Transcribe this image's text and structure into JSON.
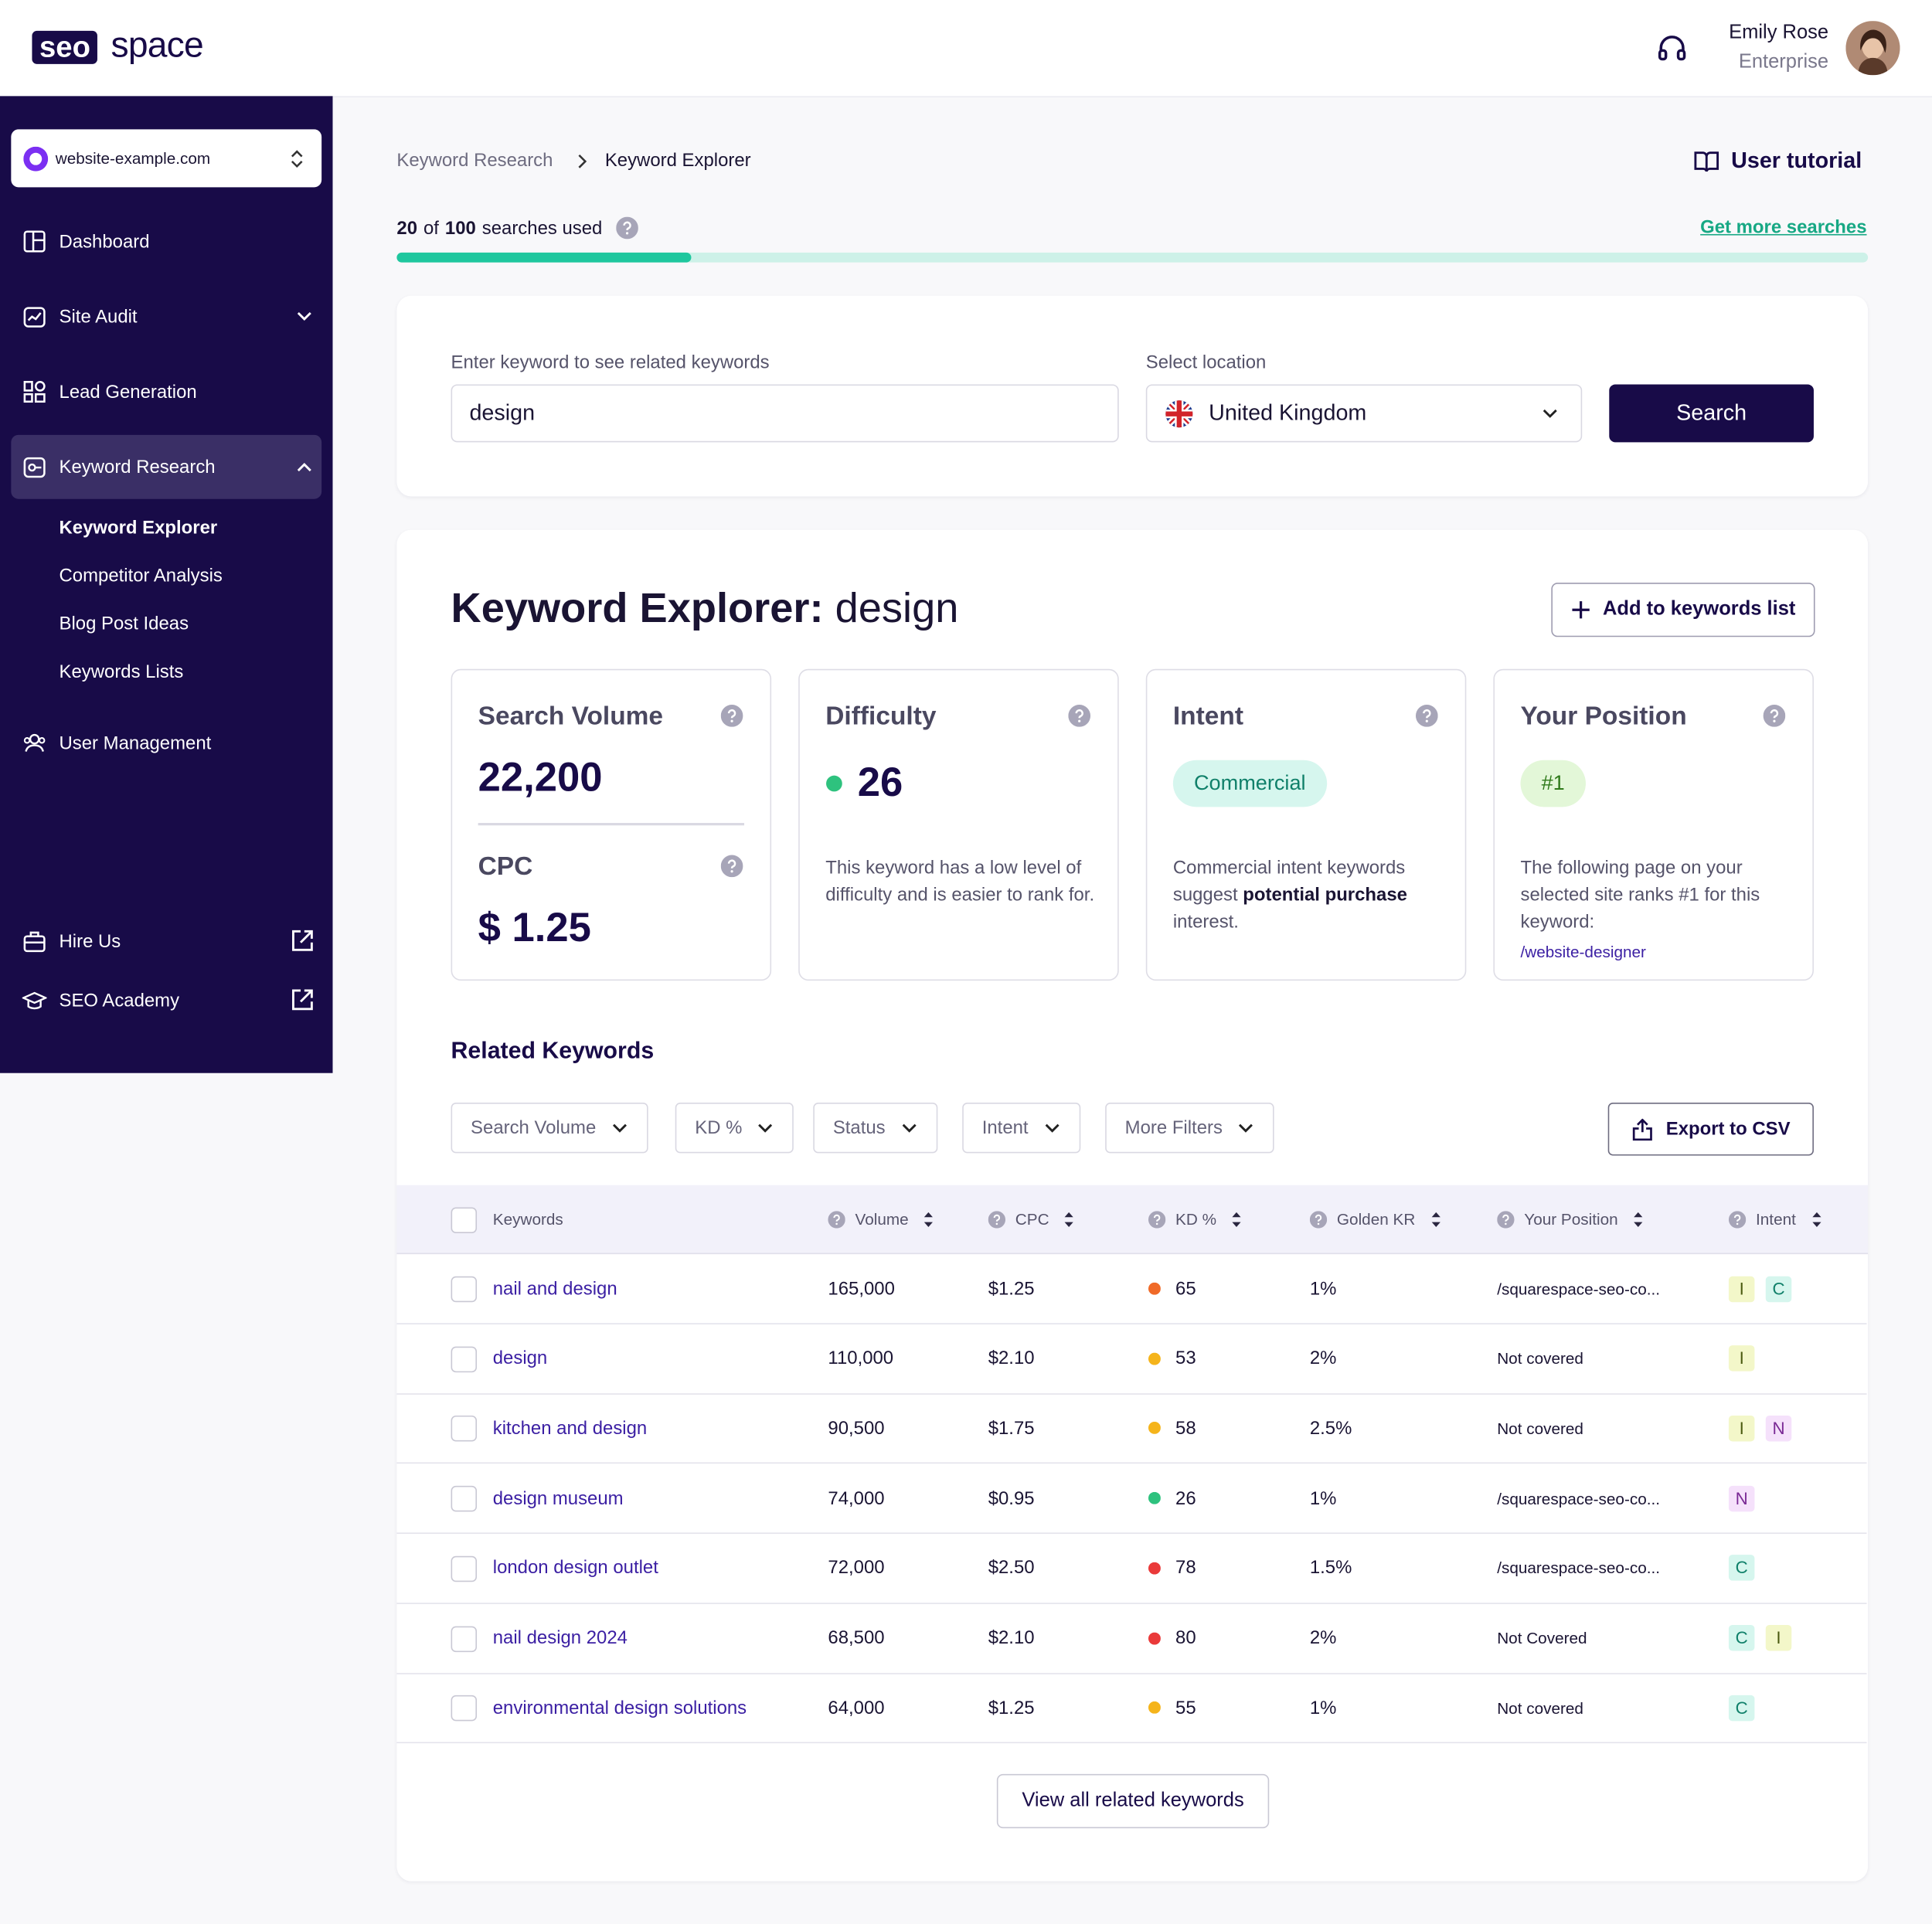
{
  "header": {
    "logo_box": "seo",
    "logo_text": "space",
    "user_name": "Emily Rose",
    "user_plan": "Enterprise"
  },
  "sidebar": {
    "site": "website-example.com",
    "nav": [
      "Dashboard",
      "Site Audit",
      "Lead Generation",
      "Keyword Research"
    ],
    "subnav": [
      "Keyword Explorer",
      "Competitor Analysis",
      "Blog Post Ideas",
      "Keywords Lists"
    ],
    "user_management": "User Management",
    "bottom": [
      "Hire Us",
      "SEO Academy"
    ]
  },
  "breadcrumb": [
    "Keyword Research",
    "Keyword Explorer"
  ],
  "tutorial": "User tutorial",
  "usage": {
    "used": 20,
    "of": "of",
    "total": 100,
    "suffix": "searches used",
    "link": "Get more searches"
  },
  "search": {
    "keyword_label": "Enter keyword to see related keywords",
    "keyword": "design",
    "location_label": "Select location",
    "location": "United Kingdom",
    "button": "Search"
  },
  "explorer": {
    "title": "Keyword Explorer:",
    "keyword": "design",
    "add_button": "Add to keywords list",
    "volume": {
      "label": "Search Volume",
      "value": "22,200"
    },
    "cpc": {
      "label": "CPC",
      "value": "$ 1.25"
    },
    "difficulty": {
      "label": "Difficulty",
      "value": "26",
      "text": "This keyword has a low level of difficulty and is easier to rank for."
    },
    "intent": {
      "label": "Intent",
      "value": "Commercial",
      "text_before": "Commercial intent keywords suggest",
      "text_bold": "potential purchase",
      "text_after": "interest."
    },
    "position": {
      "label": "Your Position",
      "value": "#1",
      "text": "The following page on your selected site ranks #1 for this keyword:",
      "link": "/website-designer"
    }
  },
  "related": {
    "title": "Related Keywords",
    "filters": [
      "Search Volume",
      "KD %",
      "Status",
      "Intent",
      "More Filters"
    ],
    "export": "Export to CSV",
    "columns": [
      "Keywords",
      "Volume",
      "CPC",
      "KD %",
      "Golden KR",
      "Your Position",
      "Intent"
    ],
    "intent_colors": {
      "I": {
        "bg": "#f3f7c9",
        "fg": "#4a5a10"
      },
      "C": {
        "bg": "#d6f6ee",
        "fg": "#10806a"
      },
      "N": {
        "bg": "#f5e1fb",
        "fg": "#7a2a95"
      }
    },
    "rows": [
      {
        "keyword": "nail and design",
        "volume": "165,000",
        "cpc": "$1.25",
        "kd": "65",
        "kd_color": "#f06a28",
        "golden": "1%",
        "position": "/squarespace-seo-co...",
        "intent": [
          "I",
          "C"
        ]
      },
      {
        "keyword": "design",
        "volume": "110,000",
        "cpc": "$2.10",
        "kd": "53",
        "kd_color": "#f5b41b",
        "golden": "2%",
        "position": "Not covered",
        "intent": [
          "I"
        ]
      },
      {
        "keyword": "kitchen and design",
        "volume": "90,500",
        "cpc": "$1.75",
        "kd": "58",
        "kd_color": "#f5b41b",
        "golden": "2.5%",
        "position": "Not covered",
        "intent": [
          "I",
          "N"
        ]
      },
      {
        "keyword": "design museum",
        "volume": "74,000",
        "cpc": "$0.95",
        "kd": "26",
        "kd_color": "#2ec27e",
        "golden": "1%",
        "position": "/squarespace-seo-co...",
        "intent": [
          "N"
        ]
      },
      {
        "keyword": "london design outlet",
        "volume": "72,000",
        "cpc": "$2.50",
        "kd": "78",
        "kd_color": "#ea3a3a",
        "golden": "1.5%",
        "position": "/squarespace-seo-co...",
        "intent": [
          "C"
        ]
      },
      {
        "keyword": "nail design 2024",
        "volume": "68,500",
        "cpc": "$2.10",
        "kd": "80",
        "kd_color": "#ea3a3a",
        "golden": "2%",
        "position": "Not Covered",
        "intent": [
          "C",
          "I"
        ]
      },
      {
        "keyword": "environmental design solutions",
        "volume": "64,000",
        "cpc": "$1.25",
        "kd": "55",
        "kd_color": "#f5b41b",
        "golden": "1%",
        "position": "Not covered",
        "intent": [
          "C"
        ]
      }
    ],
    "view_all": "View all related keywords"
  }
}
